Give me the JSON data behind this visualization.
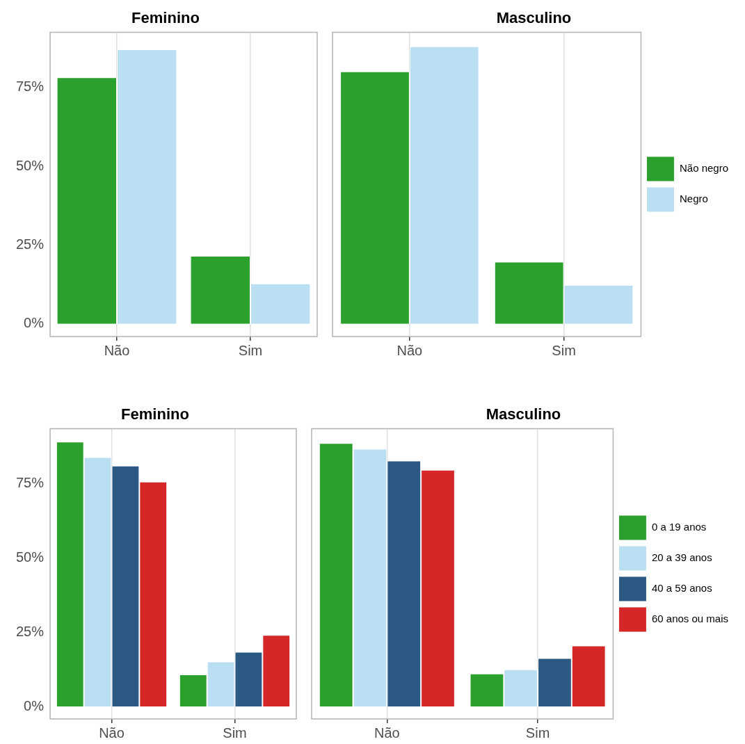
{
  "chart_data": [
    {
      "type": "bar",
      "title": "Feminino",
      "categories": [
        "Não",
        "Sim"
      ],
      "series": [
        {
          "color": "#2ca02c",
          "values": [
            78.2,
            21.6
          ]
        },
        {
          "color": "#bbdff2",
          "values": [
            87.1,
            12.8
          ]
        }
      ],
      "ylim": [
        -4,
        92.5
      ],
      "yticks": [
        {
          "value": 0,
          "label": "0%"
        },
        {
          "value": 25,
          "label": "25%"
        },
        {
          "value": 50,
          "label": "50%"
        },
        {
          "value": 75,
          "label": "75%"
        }
      ],
      "grid": "x",
      "legend": false
    },
    {
      "type": "bar",
      "title": "Masculino",
      "categories": [
        "Não",
        "Sim"
      ],
      "series": [
        {
          "name": "Não negro",
          "color": "#2ca02c",
          "values": [
            80.1,
            19.7
          ]
        },
        {
          "name": "Negro",
          "color": "#bbdff2",
          "values": [
            88.0,
            12.3
          ]
        }
      ],
      "ylim": [
        -4,
        92.5
      ],
      "yticks": [
        {
          "value": 0,
          "label": null
        },
        {
          "value": 25,
          "label": null
        },
        {
          "value": 50,
          "label": null
        },
        {
          "value": 75,
          "label": null
        }
      ],
      "grid": "x",
      "legend": "right",
      "tick_labels": "x"
    },
    {
      "type": "bar",
      "title": "Feminino",
      "categories": [
        "Não",
        "Sim"
      ],
      "series": [
        {
          "color": "#2ca02c",
          "values": [
            89.2,
            10.8
          ]
        },
        {
          "color": "#bbdff2",
          "values": [
            84.0,
            15.1
          ]
        },
        {
          "color": "#2b5984",
          "values": [
            81.1,
            18.4
          ]
        },
        {
          "color": "#d62728",
          "values": [
            75.7,
            24.1
          ]
        }
      ],
      "ylim": [
        -4.2,
        93.6
      ],
      "yticks": [
        {
          "value": 0,
          "label": "0%"
        },
        {
          "value": 25,
          "label": "25%"
        },
        {
          "value": 50,
          "label": "50%"
        },
        {
          "value": 75,
          "label": "75%"
        }
      ],
      "grid": "x",
      "legend": false
    },
    {
      "type": "bar",
      "title": "Masculino",
      "categories": [
        "Não",
        "Sim"
      ],
      "series": [
        {
          "name": "0 a 19 anos",
          "color": "#2ca02c",
          "values": [
            88.7,
            11.1
          ]
        },
        {
          "name": "20 a 39 anos",
          "color": "#bbdff2",
          "values": [
            86.8,
            12.5
          ]
        },
        {
          "name": "40 a 59 anos",
          "color": "#2b5984",
          "values": [
            82.8,
            16.3
          ]
        },
        {
          "name": "60 anos ou mais",
          "color": "#d62728",
          "values": [
            79.7,
            20.5
          ]
        }
      ],
      "ylim": [
        -4.2,
        93.6
      ],
      "yticks": [
        {
          "value": 0,
          "label": null
        },
        {
          "value": 25,
          "label": null
        },
        {
          "value": 50,
          "label": null
        },
        {
          "value": 75,
          "label": null
        }
      ],
      "grid": "x",
      "legend": "right",
      "tick_labels": "x"
    }
  ]
}
